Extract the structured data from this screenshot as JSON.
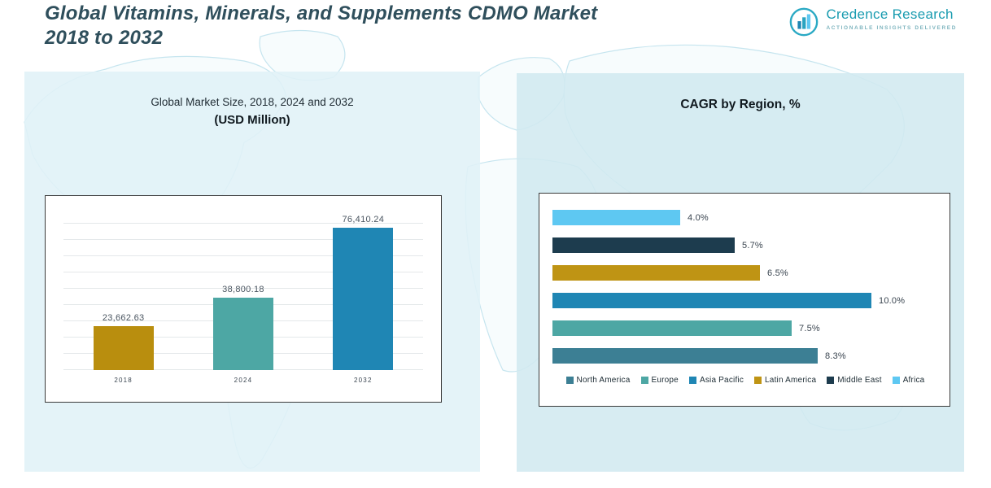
{
  "header": {
    "title_line1": "Global Vitamins, Minerals, and Supplements CDMO Market",
    "title_line2": "2018 to 2032",
    "logo": {
      "brand": "Credence Research",
      "tagline": "Actionable Insights Delivered"
    }
  },
  "left_panel": {
    "title_line1": "Global Market Size, 2018, 2024 and 2032",
    "title_line2": "(USD Million)"
  },
  "right_panel": {
    "title": "CAGR by Region, %"
  },
  "chart_data": [
    {
      "type": "bar",
      "orientation": "vertical",
      "title": "Global Market Size, 2018, 2024 and 2032 (USD Million)",
      "categories": [
        "2018",
        "2024",
        "2032"
      ],
      "values": [
        23662.63,
        38800.18,
        76410.24
      ],
      "value_labels": [
        "23,662.63",
        "38,800.18",
        "76,410.24"
      ],
      "bar_colors": [
        "#b98e0e",
        "#4da7a4",
        "#1f86b4"
      ],
      "xlabel": "",
      "ylabel": "",
      "ylim": [
        0,
        80000
      ],
      "grid": true,
      "legend_position": "none"
    },
    {
      "type": "bar",
      "orientation": "horizontal",
      "title": "CAGR by Region, %",
      "categories": [
        "Africa",
        "Middle East",
        "Latin America",
        "Asia Pacific",
        "Europe",
        "North America"
      ],
      "values": [
        4.0,
        5.7,
        6.5,
        10.0,
        7.5,
        8.3
      ],
      "value_labels": [
        "4.0%",
        "5.7%",
        "6.5%",
        "10.0%",
        "7.5%",
        "8.3%"
      ],
      "bar_colors": [
        "#5ec8f2",
        "#1d3c4e",
        "#bf9414",
        "#1f86b4",
        "#4da7a4",
        "#3c7f94"
      ],
      "xlabel": "",
      "ylabel": "",
      "xlim": [
        0,
        10.5
      ],
      "grid": false,
      "legend_position": "bottom",
      "legend": [
        {
          "label": "North America",
          "color": "#3c7f94"
        },
        {
          "label": "Europe",
          "color": "#4da7a4"
        },
        {
          "label": "Asia Pacific",
          "color": "#1f86b4"
        },
        {
          "label": "Latin America",
          "color": "#bf9414"
        },
        {
          "label": "Middle East",
          "color": "#1d3c4e"
        },
        {
          "label": "Africa",
          "color": "#5ec8f2"
        }
      ]
    }
  ]
}
